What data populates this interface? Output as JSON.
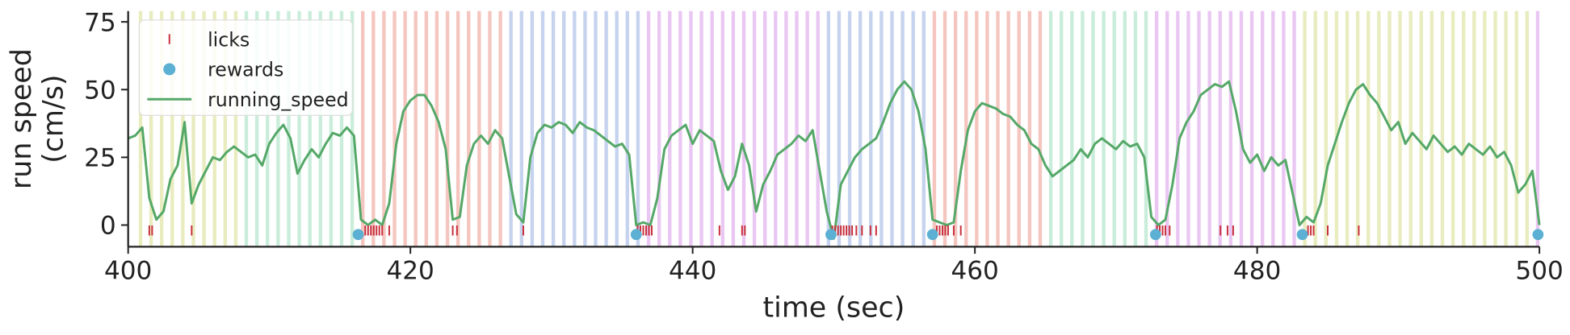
{
  "chart_data": {
    "type": "line",
    "xlabel": "time (sec)",
    "ylabel": [
      "run speed",
      "(cm/s)"
    ],
    "xlim": [
      400,
      500
    ],
    "ylim": [
      -8,
      79
    ],
    "xticks": [
      400,
      420,
      440,
      460,
      480,
      500
    ],
    "yticks": [
      0,
      25,
      50,
      75
    ],
    "legend": "upper left",
    "flash_duration": 0.25,
    "flashes": [
      {
        "color": "#e4e9b3",
        "x": [
          400.75,
          401.5,
          402.25,
          403,
          403.75,
          404.5,
          405.25,
          406,
          406.75,
          407.5
        ]
      },
      {
        "color": "#bfead3",
        "x": [
          408.25,
          409,
          409.75,
          410.5,
          411.25,
          412,
          412.75,
          413.5,
          414.25,
          415,
          415.75
        ]
      },
      {
        "color": "#f2bcb4",
        "x": [
          416.5,
          417.25,
          418,
          418.75,
          419.5,
          420.25,
          421,
          421.75,
          422.5,
          423.25,
          424,
          424.75,
          425.5,
          426.25
        ]
      },
      {
        "color": "#bccbeb",
        "x": [
          427,
          427.75,
          428.5,
          429.25,
          430,
          430.75,
          431.5,
          432.25,
          433,
          433.75,
          434.5,
          435.25,
          436
        ]
      },
      {
        "color": "#e6bdf0",
        "x": [
          436.75,
          437.5,
          438.25,
          439,
          439.75,
          440.5,
          441.25,
          442,
          442.75,
          443.5,
          444.25,
          445,
          445.75,
          446.5,
          447.25,
          448,
          448.75
        ]
      },
      {
        "color": "#bccbeb",
        "x": [
          449.5,
          450.25,
          451,
          451.75,
          452.5,
          453.25,
          454,
          454.75,
          455.5,
          456.25
        ]
      },
      {
        "color": "#f2bcb4",
        "x": [
          457,
          457.75,
          458.5,
          459.25,
          460,
          460.75,
          461.5,
          462.25,
          463,
          463.75,
          464.5
        ]
      },
      {
        "color": "#bfead3",
        "x": [
          465.25,
          466,
          466.75,
          467.5,
          468.25,
          469,
          469.75,
          470.5,
          471.25,
          472
        ]
      },
      {
        "color": "#e6bdf0",
        "x": [
          472.75,
          473.5,
          474.25,
          475,
          475.75,
          476.5,
          477.25,
          478,
          478.75,
          479.5,
          480.25,
          481,
          481.75,
          482.5
        ]
      },
      {
        "color": "#e4e9b3",
        "x": [
          483.25,
          484,
          484.75,
          485.5,
          486.25,
          487,
          487.75,
          488.5,
          489.25,
          490,
          490.75,
          491.5,
          492.25,
          493,
          493.75,
          494.5,
          495.25,
          496,
          496.75,
          497.5,
          498.25,
          499
        ]
      },
      {
        "color": "#e6bdf0",
        "x": [
          499.75
        ]
      }
    ],
    "series": [
      {
        "name": "licks",
        "type": "scatter",
        "marker": "tick",
        "color": "#c8303c",
        "x": [
          401.5,
          401.7,
          404.5,
          416.8,
          417.0,
          417.2,
          417.4,
          417.6,
          417.8,
          418.0,
          418.5,
          423.0,
          423.3,
          428.0,
          436.1,
          436.3,
          436.5,
          436.7,
          436.9,
          437.1,
          441.9,
          443.5,
          443.7,
          449.9,
          450.1,
          450.3,
          450.5,
          450.7,
          450.9,
          451.1,
          451.3,
          451.6,
          452.0,
          452.6,
          453.0,
          457.3,
          457.5,
          457.7,
          457.9,
          458.1,
          458.5,
          459.0,
          472.9,
          473.1,
          473.3,
          473.5,
          473.8,
          477.4,
          477.9,
          478.3,
          483.6,
          483.8,
          484.0,
          485.0,
          487.2
        ],
        "values": [
          -2,
          -2,
          -2,
          -2,
          -2,
          -2,
          -2,
          -2,
          -2,
          -2,
          -2,
          -2,
          -2,
          -2,
          -2,
          -2,
          -2,
          -2,
          -2,
          -2,
          -2,
          -2,
          -2,
          -2,
          -2,
          -2,
          -2,
          -2,
          -2,
          -2,
          -2,
          -2,
          -2,
          -2,
          -2,
          -2,
          -2,
          -2,
          -2,
          -2,
          -2,
          -2,
          -2,
          -2,
          -2,
          -2,
          -2,
          -2,
          -2,
          -2,
          -2,
          -2,
          -2,
          -2,
          -2
        ]
      },
      {
        "name": "rewards",
        "type": "scatter",
        "marker": "circle",
        "color": "#5bb0d3",
        "x": [
          416.3,
          436.0,
          449.8,
          457.0,
          472.8,
          483.2,
          499.9
        ],
        "values": [
          -3.5,
          -3.5,
          -3.5,
          -3.5,
          -3.5,
          -3.5,
          -3.5
        ]
      },
      {
        "name": "running_speed",
        "type": "line",
        "color": "#55a868",
        "x": [
          400,
          400.5,
          401,
          401.5,
          402,
          402.5,
          403,
          403.5,
          404,
          404.5,
          405,
          405.5,
          406,
          406.5,
          407,
          407.5,
          408,
          408.5,
          409,
          409.5,
          410,
          410.5,
          411,
          411.5,
          412,
          412.5,
          413,
          413.5,
          414,
          414.5,
          415,
          415.5,
          416,
          416.5,
          417,
          417.5,
          418,
          418.5,
          419,
          419.5,
          420,
          420.5,
          421,
          421.5,
          422,
          422.5,
          423,
          423.5,
          424,
          424.5,
          425,
          425.5,
          426,
          426.5,
          427,
          427.5,
          428,
          428.5,
          429,
          429.5,
          430,
          430.5,
          431,
          431.5,
          432,
          432.5,
          433,
          433.5,
          434,
          434.5,
          435,
          435.5,
          436,
          436.5,
          437,
          437.5,
          438,
          438.5,
          439,
          439.5,
          440,
          440.5,
          441,
          441.5,
          442,
          442.5,
          443,
          443.5,
          444,
          444.5,
          445,
          445.5,
          446,
          446.5,
          447,
          447.5,
          448,
          448.5,
          449,
          449.5,
          450,
          450.5,
          451,
          451.5,
          452,
          452.5,
          453,
          453.5,
          454,
          454.5,
          455,
          455.5,
          456,
          456.5,
          457,
          457.5,
          458,
          458.5,
          459,
          459.5,
          460,
          460.5,
          461,
          461.5,
          462,
          462.5,
          463,
          463.5,
          464,
          464.5,
          465,
          465.5,
          466,
          466.5,
          467,
          467.5,
          468,
          468.5,
          469,
          469.5,
          470,
          470.5,
          471,
          471.5,
          472,
          472.5,
          473,
          473.5,
          474,
          474.5,
          475,
          475.5,
          476,
          476.5,
          477,
          477.5,
          478,
          478.5,
          479,
          479.5,
          480,
          480.5,
          481,
          481.5,
          482,
          482.5,
          483,
          483.5,
          484,
          484.5,
          485,
          485.5,
          486,
          486.5,
          487,
          487.5,
          488,
          488.5,
          489,
          489.5,
          490,
          490.5,
          491,
          491.5,
          492,
          492.5,
          493,
          493.5,
          494,
          494.5,
          495,
          495.5,
          496,
          496.5,
          497,
          497.5,
          498,
          498.5,
          499,
          499.5,
          500
        ],
        "values": [
          32,
          33,
          36,
          10,
          2,
          5,
          17,
          22,
          38,
          8,
          15,
          20,
          25,
          24,
          27,
          29,
          27,
          25,
          26,
          22,
          30,
          34,
          37,
          32,
          19,
          24,
          28,
          25,
          30,
          34,
          33,
          36,
          33,
          2,
          0,
          2,
          0,
          8,
          30,
          42,
          46,
          48,
          48,
          44,
          38,
          28,
          2,
          3,
          22,
          30,
          33,
          30,
          35,
          32,
          18,
          4,
          1,
          25,
          34,
          37,
          36,
          38,
          37,
          34,
          38,
          36,
          35,
          33,
          31,
          29,
          30,
          26,
          0,
          1,
          0,
          10,
          28,
          33,
          35,
          37,
          30,
          35,
          33,
          31,
          20,
          13,
          18,
          30,
          22,
          5,
          15,
          20,
          26,
          28,
          30,
          33,
          31,
          35,
          20,
          5,
          -5,
          15,
          20,
          25,
          28,
          30,
          32,
          38,
          45,
          50,
          53,
          50,
          42,
          28,
          2,
          1,
          0,
          1,
          20,
          35,
          42,
          45,
          44,
          43,
          41,
          40,
          37,
          35,
          30,
          28,
          22,
          18,
          20,
          22,
          24,
          28,
          25,
          30,
          32,
          30,
          28,
          31,
          29,
          30,
          25,
          3,
          0,
          2,
          15,
          32,
          38,
          42,
          48,
          50,
          52,
          51,
          53,
          42,
          28,
          23,
          26,
          20,
          25,
          22,
          24,
          12,
          0,
          3,
          1,
          8,
          22,
          30,
          38,
          45,
          50,
          52,
          48,
          45,
          40,
          35,
          38,
          30,
          34,
          31,
          28,
          33,
          30,
          27,
          29,
          26,
          30,
          28,
          26,
          29,
          25,
          27,
          22,
          12,
          15,
          20,
          0
        ]
      }
    ]
  }
}
